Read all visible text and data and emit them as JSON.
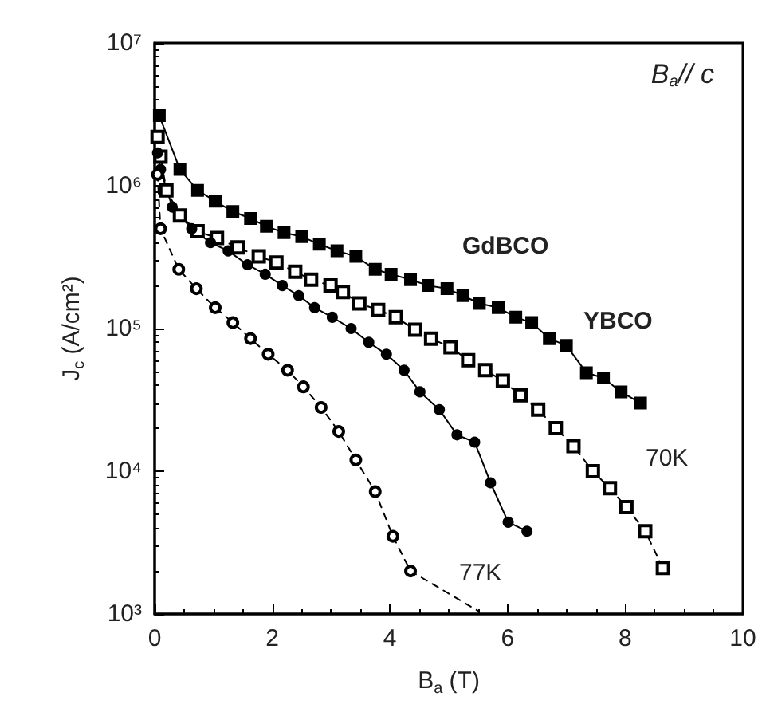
{
  "chart_data": {
    "type": "line",
    "xlabel": "B$_{a}$ (T)",
    "ylabel": "J$_{c}$ (A/cm²)",
    "annotations": [
      "B$_{a}$// c",
      "GdBCO",
      "YBCO",
      "70K",
      "77K"
    ],
    "log": "y",
    "xlim": [
      0,
      10
    ],
    "xticks": [
      0,
      2,
      4,
      6,
      8,
      10
    ],
    "ylim": [
      1000,
      10000000
    ],
    "yticks": [
      {
        "value": 1000,
        "label": "10³"
      },
      {
        "value": 10000,
        "label": "10⁴"
      },
      {
        "value": 100000,
        "label": "10⁵"
      },
      {
        "value": 1000000,
        "label": "10⁶"
      },
      {
        "value": 10000000,
        "label": "10⁷"
      }
    ],
    "grid": false,
    "series": [
      {
        "color": "#000000",
        "marker": "square",
        "line_style": "solid",
        "x": [
          0.08,
          0.43,
          0.73,
          1.03,
          1.33,
          1.63,
          1.9,
          2.2,
          2.5,
          2.8,
          3.1,
          3.42,
          3.75,
          4.02,
          4.35,
          4.65,
          4.97,
          5.24,
          5.52,
          5.84,
          6.14,
          6.41,
          6.71,
          7.0,
          7.34,
          7.63,
          7.93,
          8.26
        ],
        "values": [
          3100000,
          1300000,
          930000,
          780000,
          660000,
          590000,
          520000,
          470000,
          440000,
          390000,
          350000,
          320000,
          260000,
          240000,
          220000,
          200000,
          190000,
          170000,
          150000,
          140000,
          120000,
          110000,
          85000,
          76000,
          49000,
          45000,
          36000,
          30000
        ]
      },
      {
        "color": "#000000",
        "marker": "square",
        "line_style": "dashed",
        "x": [
          0.05,
          0.1,
          0.2,
          0.43,
          0.73,
          1.06,
          1.41,
          1.77,
          2.07,
          2.39,
          2.66,
          2.99,
          3.2,
          3.48,
          3.8,
          4.1,
          4.43,
          4.7,
          5.03,
          5.33,
          5.62,
          5.92,
          6.22,
          6.52,
          6.82,
          7.12,
          7.45,
          7.74,
          8.02,
          8.34,
          8.64
        ],
        "values": [
          2200000,
          1600000,
          930000,
          620000,
          480000,
          430000,
          370000,
          320000,
          290000,
          250000,
          220000,
          200000,
          180000,
          150000,
          135000,
          120000,
          98000,
          85000,
          74000,
          60000,
          51000,
          43000,
          34000,
          27000,
          20000,
          15000,
          10000,
          7600,
          5600,
          3800,
          2100
        ]
      },
      {
        "color": "#000000",
        "marker": "circle",
        "line_style": "solid",
        "x": [
          0.05,
          0.1,
          0.3,
          0.63,
          0.95,
          1.25,
          1.58,
          1.88,
          2.17,
          2.45,
          2.72,
          3.02,
          3.34,
          3.64,
          3.94,
          4.24,
          4.51,
          4.84,
          5.14,
          5.44,
          5.71,
          6.01,
          6.33
        ],
        "values": [
          1700000,
          1300000,
          710000,
          500000,
          400000,
          350000,
          280000,
          240000,
          200000,
          170000,
          140000,
          120000,
          100000,
          80000,
          66000,
          51000,
          36000,
          27000,
          18000,
          16000,
          8300,
          4400,
          3800
        ]
      },
      {
        "color": "#000000",
        "marker": "circle",
        "line_style": "dashed",
        "x": [
          0.05,
          0.1,
          0.41,
          0.71,
          1.03,
          1.33,
          1.63,
          1.93,
          2.26,
          2.53,
          2.83,
          3.13,
          3.42,
          3.75,
          4.05,
          4.35
        ],
        "values": [
          1200000,
          500000,
          260000,
          190000,
          140000,
          110000,
          85000,
          66000,
          51000,
          39000,
          28000,
          19000,
          12000,
          7200,
          3500,
          2000
        ]
      },
      {
        "color": "#000000",
        "marker": "none",
        "line_style": "dashed",
        "x": [
          4.35,
          5.5
        ],
        "values": [
          2000,
          1050
        ]
      }
    ]
  }
}
